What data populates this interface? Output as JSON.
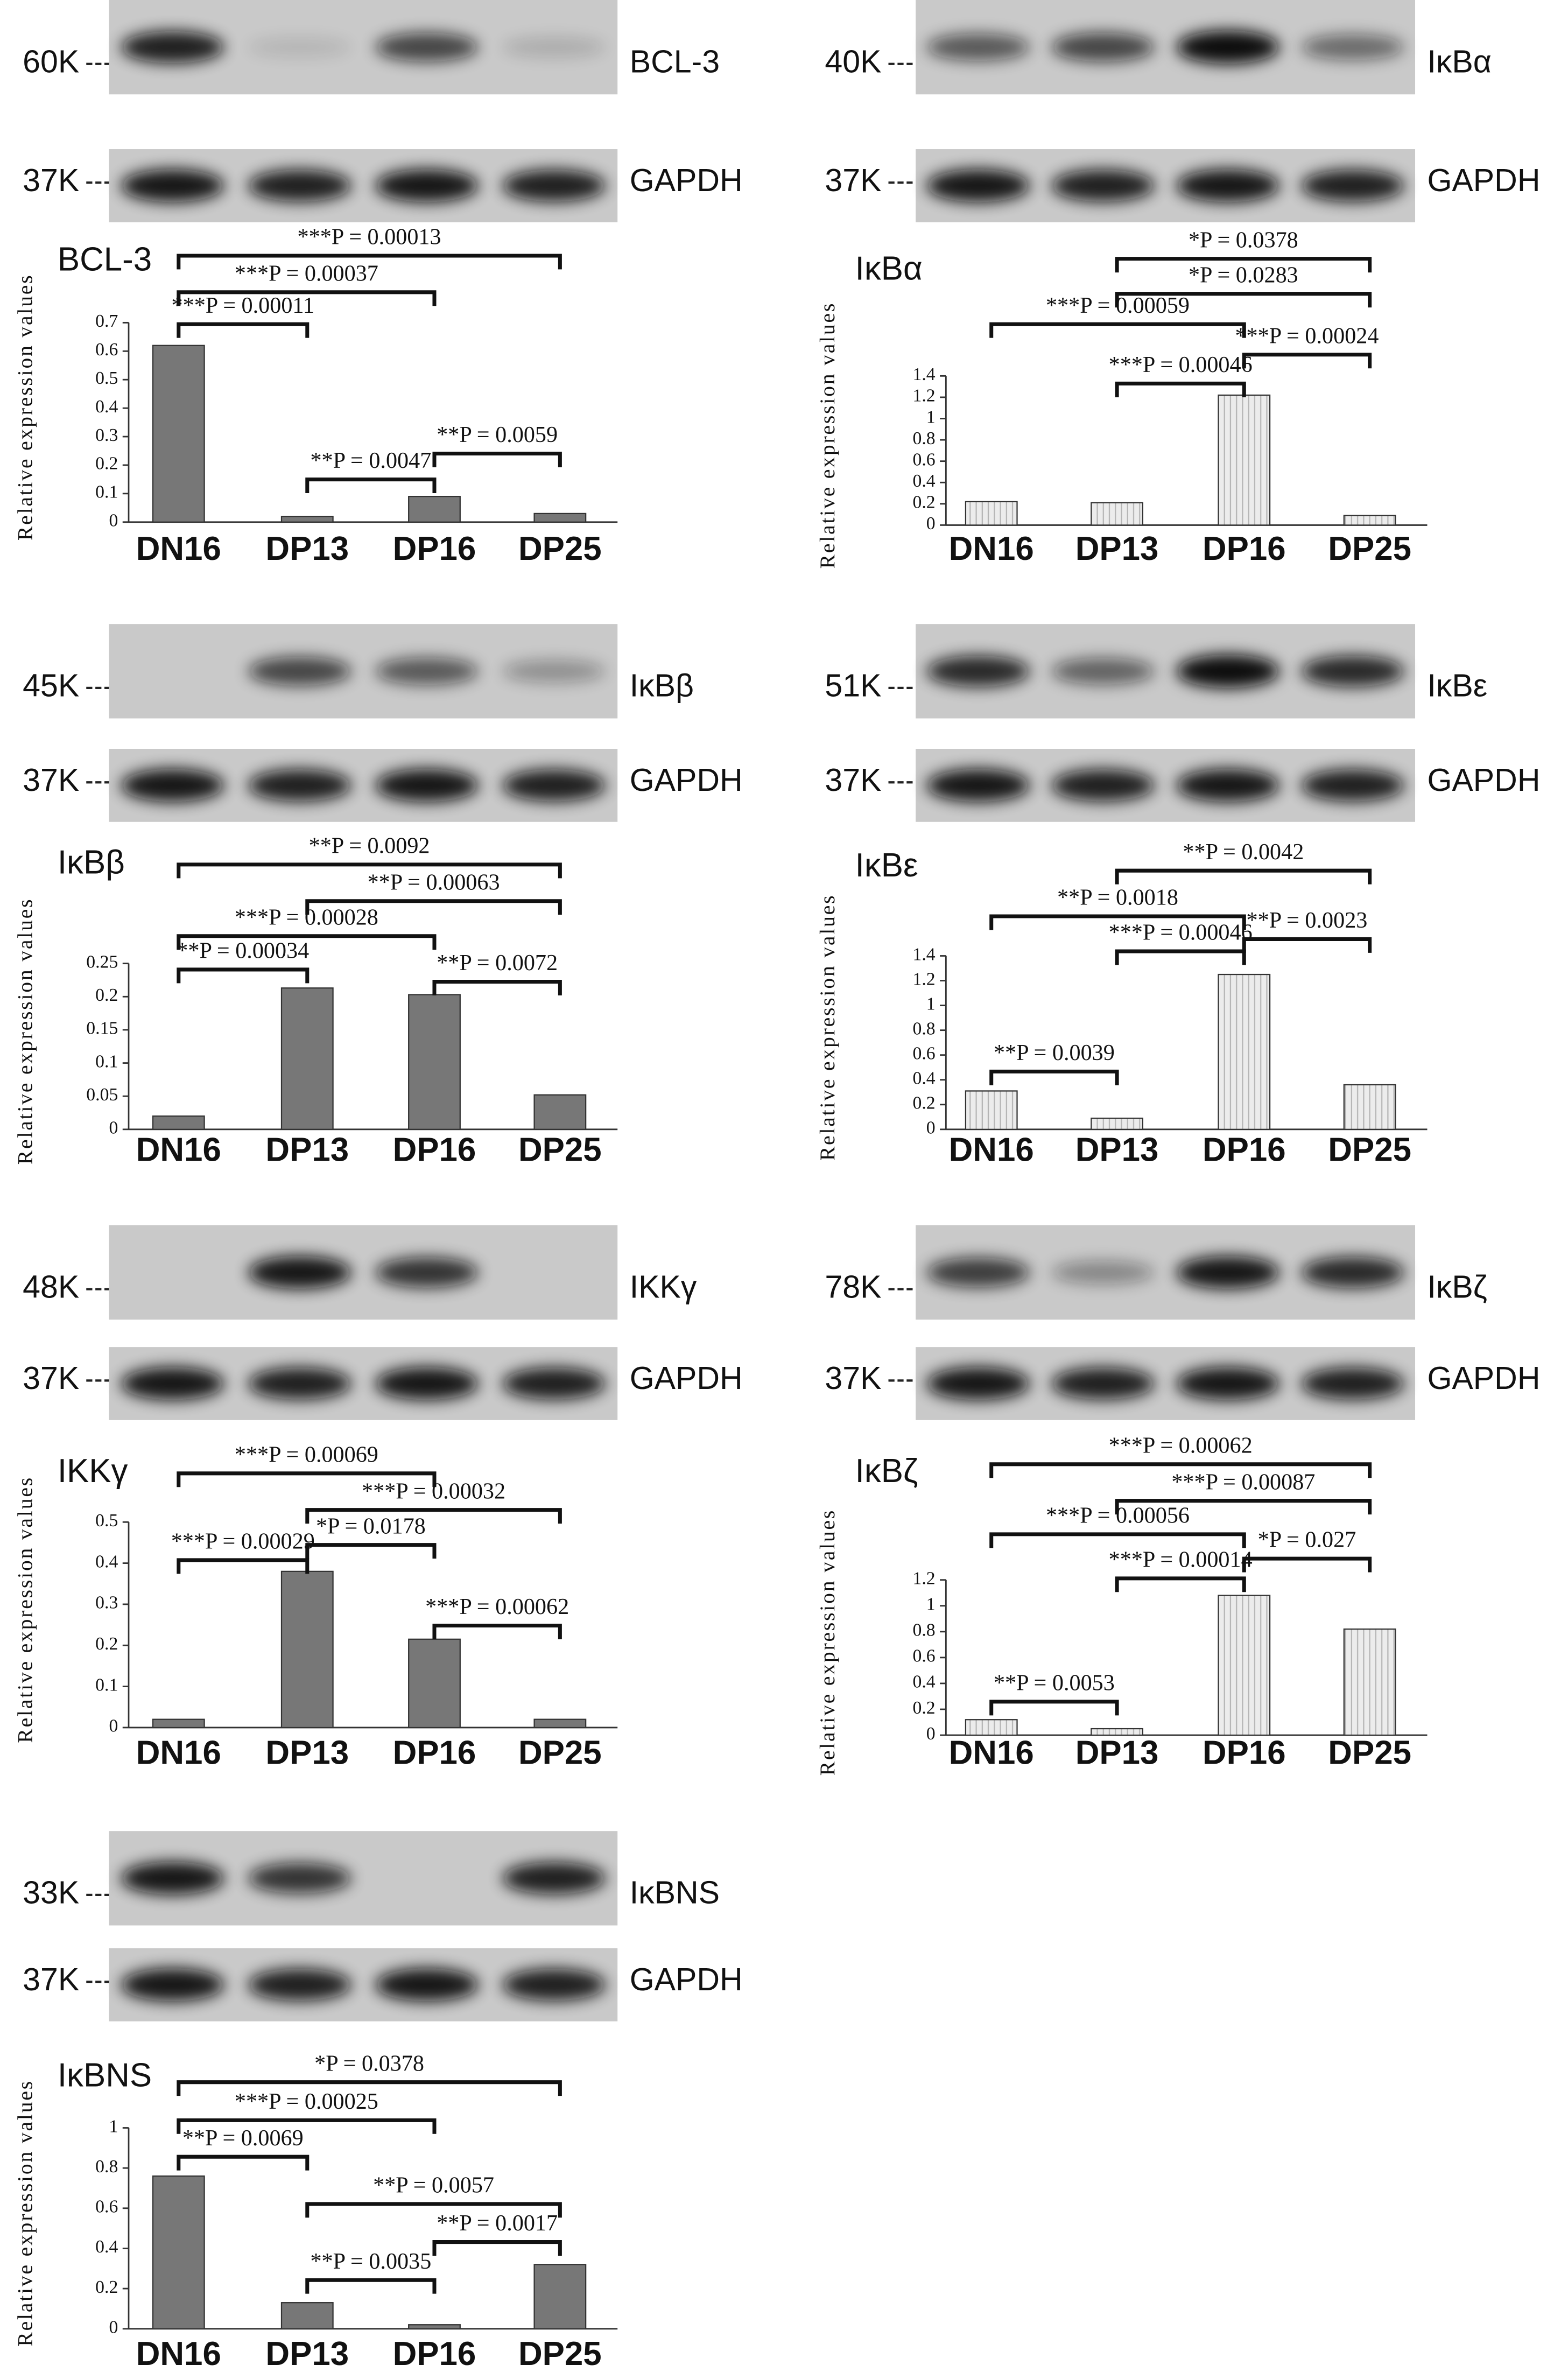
{
  "chart_data": [
    {
      "type": "bar",
      "title": "BCL-3",
      "blots": [
        {
          "marker": "60K",
          "label": "BCL-3"
        },
        {
          "marker": "37K",
          "label": "GAPDH"
        }
      ],
      "ylabel": "Relative expression values",
      "categories": [
        "DN16",
        "DP13",
        "DP16",
        "DP25"
      ],
      "values": [
        0.62,
        0.02,
        0.09,
        0.03
      ],
      "color": "#777777",
      "pattern": "solid",
      "ylim": [
        0,
        0.7
      ],
      "yticks": [
        0,
        0.1,
        0.2,
        0.3,
        0.4,
        0.5,
        0.6,
        0.7
      ],
      "annotations": [
        "***P = 0.00013",
        "***P = 0.00037",
        "***P = 0.00011",
        "**P = 0.0047",
        "**P = 0.0059"
      ]
    },
    {
      "type": "bar",
      "title": "IκBα",
      "blots": [
        {
          "marker": "40K",
          "label": "IκBα"
        },
        {
          "marker": "37K",
          "label": "GAPDH"
        }
      ],
      "ylabel": "Relative expression values",
      "categories": [
        "DN16",
        "DP13",
        "DP16",
        "DP25"
      ],
      "values": [
        0.22,
        0.21,
        1.22,
        0.09
      ],
      "color": "#e2e2e2",
      "pattern": "vertical-lines",
      "ylim": [
        0,
        1.4
      ],
      "yticks": [
        0,
        0.2,
        0.4,
        0.6,
        0.8,
        1,
        1.2,
        1.4
      ],
      "annotations": [
        "*P = 0.0378",
        "*P = 0.0283",
        "***P = 0.00059",
        "***P = 0.00046",
        "***P = 0.00024"
      ]
    },
    {
      "type": "bar",
      "title": "IκBβ",
      "blots": [
        {
          "marker": "45K",
          "label": "IκBβ"
        },
        {
          "marker": "37K",
          "label": "GAPDH"
        }
      ],
      "ylabel": "Relative expression values",
      "categories": [
        "DN16",
        "DP13",
        "DP16",
        "DP25"
      ],
      "values": [
        0.02,
        0.213,
        0.203,
        0.052
      ],
      "color": "#777777",
      "pattern": "solid",
      "ylim": [
        0,
        0.25
      ],
      "yticks": [
        0,
        0.05,
        0.1,
        0.15,
        0.2,
        0.25
      ],
      "annotations": [
        "**P = 0.0092",
        "**P = 0.00063",
        "***P = 0.00028",
        "**P = 0.00034",
        "**P = 0.0072"
      ]
    },
    {
      "type": "bar",
      "title": "IκBε",
      "blots": [
        {
          "marker": "51K",
          "label": "IκBε"
        },
        {
          "marker": "37K",
          "label": "GAPDH"
        }
      ],
      "ylabel": "Relative expression values",
      "categories": [
        "DN16",
        "DP13",
        "DP16",
        "DP25"
      ],
      "values": [
        0.31,
        0.09,
        1.25,
        0.36
      ],
      "color": "#e2e2e2",
      "pattern": "vertical-lines",
      "ylim": [
        0,
        1.4
      ],
      "yticks": [
        0,
        0.2,
        0.4,
        0.6,
        0.8,
        1,
        1.2,
        1.4
      ],
      "annotations": [
        "**P = 0.0042",
        "**P = 0.0018",
        "***P = 0.00046",
        "**P = 0.0023",
        "**P = 0.0039"
      ]
    },
    {
      "type": "bar",
      "title": "IKKγ",
      "blots": [
        {
          "marker": "48K",
          "label": "IKKγ"
        },
        {
          "marker": "37K",
          "label": "GAPDH"
        }
      ],
      "ylabel": "Relative expression values",
      "categories": [
        "DN16",
        "DP13",
        "DP16",
        "DP25"
      ],
      "values": [
        0.02,
        0.38,
        0.215,
        0.02
      ],
      "color": "#777777",
      "pattern": "solid",
      "ylim": [
        0,
        0.5
      ],
      "yticks": [
        0,
        0.1,
        0.2,
        0.3,
        0.4,
        0.5
      ],
      "annotations": [
        "***P = 0.00069",
        "***P = 0.00032",
        "*P = 0.0178",
        "***P = 0.00029",
        "***P = 0.00062"
      ]
    },
    {
      "type": "bar",
      "title": "IκBζ",
      "blots": [
        {
          "marker": "78K",
          "label": "IκBζ"
        },
        {
          "marker": "37K",
          "label": "GAPDH"
        }
      ],
      "ylabel": "Relative expression values",
      "categories": [
        "DN16",
        "DP13",
        "DP16",
        "DP25"
      ],
      "values": [
        0.12,
        0.05,
        1.08,
        0.82
      ],
      "color": "#e2e2e2",
      "pattern": "vertical-lines",
      "ylim": [
        0,
        1.2
      ],
      "yticks": [
        0,
        0.2,
        0.4,
        0.6,
        0.8,
        1,
        1.2
      ],
      "annotations": [
        "***P = 0.00062",
        "***P = 0.00087",
        "***P = 0.00056",
        "***P = 0.00014",
        "*P = 0.027",
        "**P = 0.0053"
      ]
    },
    {
      "type": "bar",
      "title": "IκBNS",
      "blots": [
        {
          "marker": "33K",
          "label": "IκBNS"
        },
        {
          "marker": "37K",
          "label": "GAPDH"
        }
      ],
      "ylabel": "Relative expression values",
      "categories": [
        "DN16",
        "DP13",
        "DP16",
        "DP25"
      ],
      "values": [
        0.76,
        0.13,
        0.02,
        0.32
      ],
      "color": "#777777",
      "pattern": "solid",
      "ylim": [
        0,
        1
      ],
      "yticks": [
        0,
        0.2,
        0.4,
        0.6,
        0.8,
        1
      ],
      "annotations": [
        "*P = 0.0378",
        "***P = 0.00025",
        "**P = 0.0069",
        "**P = 0.0057",
        "**P = 0.0017",
        "**P = 0.0035"
      ]
    }
  ]
}
